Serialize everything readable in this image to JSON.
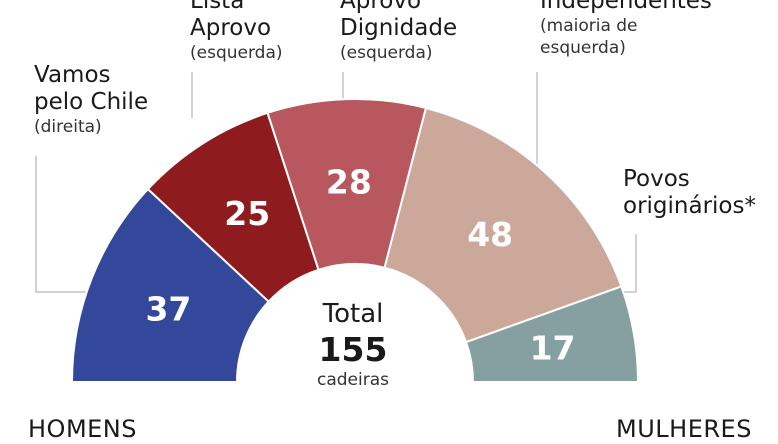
{
  "chart_data": {
    "type": "pie",
    "subtype": "parliament-semicircle",
    "total_label": "Total",
    "total_value": "155",
    "total_unit": "cadeiras",
    "slices": [
      {
        "name": "Vamos pelo Chile",
        "line1": "Vamos",
        "line2": "pelo Chile",
        "note": "(direita)",
        "value": 37,
        "color": "#33489a"
      },
      {
        "name": "Lista Aprovo",
        "line1": "Lista",
        "line2": "Aprovo",
        "note": "(esquerda)",
        "value": 25,
        "color": "#8e1b1e"
      },
      {
        "name": "Aprovo Dignidade",
        "line1": "Aprovo",
        "line2": "Dignidade",
        "note": "(esquerda)",
        "value": 28,
        "color": "#b8585e"
      },
      {
        "name": "Independentes",
        "line1": "Independentes",
        "line2": "",
        "note": "(maioria de",
        "note2": "esquerda)",
        "value": 48,
        "color": "#cca89a"
      },
      {
        "name": "Povos originários*",
        "line1": "Povos",
        "line2": "originários*",
        "note": "",
        "value": 17,
        "color": "#86a0a1"
      }
    ],
    "footer_left": "HOMENS",
    "footer_right": "MULHERES"
  }
}
